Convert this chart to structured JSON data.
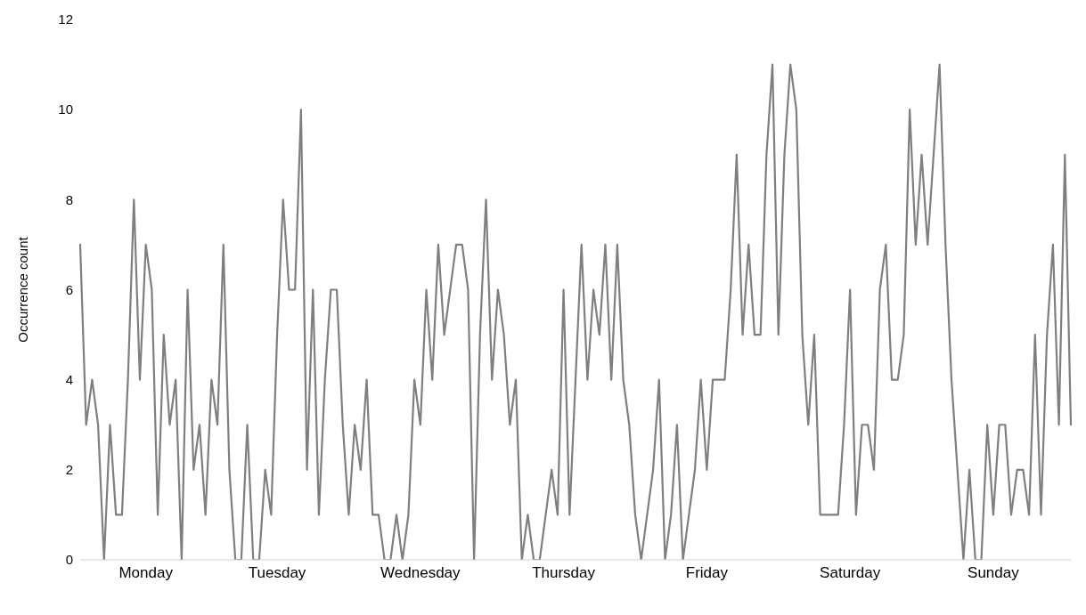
{
  "chart_data": {
    "type": "line",
    "ylabel": "Occurrence count",
    "categories": [
      null,
      null,
      null,
      null,
      null,
      null,
      null,
      null,
      null,
      null,
      null,
      "Monday",
      null,
      null,
      null,
      null,
      null,
      null,
      null,
      null,
      null,
      null,
      null,
      null,
      null,
      null,
      null,
      null,
      null,
      null,
      null,
      null,
      null,
      "Tuesday",
      null,
      null,
      null,
      null,
      null,
      null,
      null,
      null,
      null,
      null,
      null,
      null,
      null,
      null,
      null,
      null,
      null,
      null,
      null,
      null,
      null,
      null,
      null,
      "Wednesday",
      null,
      null,
      null,
      null,
      null,
      null,
      null,
      null,
      null,
      null,
      null,
      null,
      null,
      null,
      null,
      null,
      null,
      null,
      null,
      null,
      null,
      null,
      null,
      "Thursday",
      null,
      null,
      null,
      null,
      null,
      null,
      null,
      null,
      null,
      null,
      null,
      null,
      null,
      null,
      null,
      null,
      null,
      null,
      null,
      null,
      null,
      null,
      null,
      "Friday",
      null,
      null,
      null,
      null,
      null,
      null,
      null,
      null,
      null,
      null,
      null,
      null,
      null,
      null,
      null,
      null,
      null,
      null,
      null,
      null,
      null,
      null,
      null,
      "Saturday",
      null,
      null,
      null,
      null,
      null,
      null,
      null,
      null,
      null,
      null,
      null,
      null,
      null,
      null,
      null,
      null,
      null,
      null,
      null,
      null,
      null,
      null,
      null,
      "Sunday",
      null,
      null,
      null,
      null,
      null,
      null,
      null,
      null,
      null,
      null,
      null,
      null,
      null
    ],
    "series": [
      {
        "color": "#7f7f7f",
        "values": [
          7,
          3,
          4,
          3,
          0,
          3,
          1,
          1,
          4,
          8,
          4,
          7,
          6,
          1,
          5,
          3,
          4,
          0,
          6,
          2,
          3,
          1,
          4,
          3,
          7,
          2,
          0,
          0,
          3,
          0,
          0,
          2,
          1,
          5,
          8,
          6,
          6,
          10,
          2,
          6,
          1,
          4,
          6,
          6,
          3,
          1,
          3,
          2,
          4,
          1,
          1,
          0,
          0,
          1,
          0,
          1,
          4,
          3,
          6,
          4,
          7,
          5,
          6,
          7,
          7,
          6,
          0,
          5,
          8,
          4,
          6,
          5,
          3,
          4,
          0,
          1,
          0,
          0,
          1,
          2,
          1,
          6,
          1,
          4,
          7,
          4,
          6,
          5,
          7,
          4,
          7,
          4,
          3,
          1,
          0,
          1,
          2,
          4,
          0,
          1,
          3,
          0,
          1,
          2,
          4,
          2,
          4,
          4,
          4,
          6,
          9,
          5,
          7,
          5,
          5,
          9,
          11,
          5,
          9,
          11,
          10,
          5,
          3,
          5,
          1,
          1,
          1,
          1,
          3,
          6,
          1,
          3,
          3,
          2,
          6,
          7,
          4,
          4,
          5,
          10,
          7,
          9,
          7,
          9,
          11,
          7,
          4,
          2,
          0,
          2,
          0,
          0,
          3,
          1,
          3,
          3,
          1,
          2,
          2,
          1,
          5,
          1,
          5,
          7,
          3,
          9,
          3
        ]
      }
    ],
    "ylim": [
      0,
      12
    ],
    "yticks": [
      0,
      2,
      4,
      6,
      8,
      10,
      12
    ],
    "grid": false,
    "legend": false,
    "marker": "none",
    "line_style": "solid"
  }
}
